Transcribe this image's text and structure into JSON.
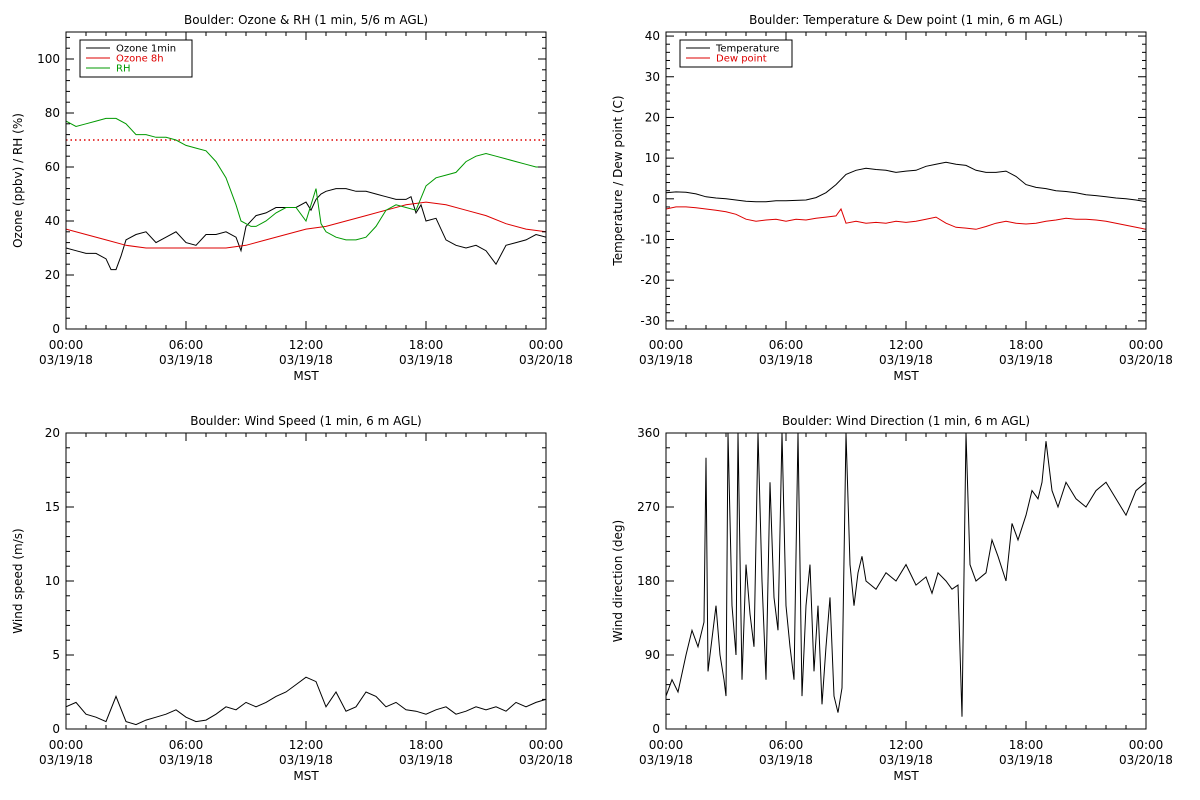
{
  "chart_data": [
    {
      "type": "line",
      "title": "Boulder: Ozone & RH (1 min, 5/6 m AGL)",
      "xlabel": "MST",
      "ylabel": "Ozone (ppbv) / RH (%)",
      "xlim_hours": [
        0,
        24
      ],
      "ylim": [
        0,
        110
      ],
      "yticks": [
        0,
        20,
        40,
        60,
        80,
        100
      ],
      "xtick_times": [
        "00:00",
        "06:00",
        "12:00",
        "18:00",
        "00:00"
      ],
      "xtick_dates": [
        "03/19/18",
        "03/19/18",
        "03/19/18",
        "03/19/18",
        "03/20/18"
      ],
      "legend_position": "top-left",
      "reference_line": {
        "y": 70,
        "style": "dotted",
        "color": "#dd0000"
      },
      "series": [
        {
          "name": "Ozone 1min",
          "color": "#000000",
          "x": [
            0,
            0.5,
            1,
            1.5,
            2,
            2.25,
            2.5,
            2.75,
            3,
            3.5,
            4,
            4.5,
            5,
            5.5,
            6,
            6.5,
            7,
            7.5,
            8,
            8.5,
            8.75,
            9,
            9.5,
            10,
            10.5,
            11,
            11.5,
            12,
            12.25,
            12.5,
            12.75,
            13,
            13.5,
            14,
            14.5,
            15,
            15.5,
            16,
            16.5,
            17,
            17.25,
            17.5,
            17.75,
            18,
            18.5,
            19,
            19.5,
            20,
            20.5,
            21,
            21.5,
            22,
            22.5,
            23,
            23.5,
            24
          ],
          "y": [
            30,
            29,
            28,
            28,
            26,
            22,
            22,
            27,
            33,
            35,
            36,
            32,
            34,
            36,
            32,
            31,
            35,
            35,
            36,
            34,
            29,
            38,
            42,
            43,
            45,
            45,
            45,
            47,
            44,
            48,
            50,
            51,
            52,
            52,
            51,
            51,
            50,
            49,
            48,
            48,
            49,
            43,
            46,
            40,
            41,
            33,
            31,
            30,
            31,
            29,
            24,
            31,
            32,
            33,
            35,
            34
          ]
        },
        {
          "name": "Ozone 8h",
          "color": "#dd0000",
          "x": [
            0,
            1,
            2,
            3,
            4,
            5,
            6,
            7,
            8,
            9,
            10,
            11,
            12,
            13,
            14,
            15,
            16,
            17,
            18,
            19,
            20,
            21,
            22,
            23,
            24
          ],
          "y": [
            37,
            35,
            33,
            31,
            30,
            30,
            30,
            30,
            30,
            31,
            33,
            35,
            37,
            38,
            40,
            42,
            44,
            46,
            47,
            46,
            44,
            42,
            39,
            37,
            36
          ]
        },
        {
          "name": "RH",
          "color": "#009900",
          "x": [
            0,
            0.5,
            1,
            1.5,
            2,
            2.5,
            3,
            3.5,
            4,
            4.5,
            5,
            5.5,
            6,
            6.5,
            7,
            7.5,
            8,
            8.25,
            8.5,
            8.75,
            9,
            9.25,
            9.5,
            10,
            10.5,
            11,
            11.5,
            12,
            12.25,
            12.5,
            12.75,
            13,
            13.5,
            14,
            14.5,
            15,
            15.5,
            16,
            16.5,
            17,
            17.5,
            18,
            18.5,
            19,
            19.5,
            20,
            20.5,
            21,
            21.5,
            22,
            22.5,
            23,
            23.5,
            24
          ],
          "y": [
            77,
            75,
            76,
            77,
            78,
            78,
            76,
            72,
            72,
            71,
            71,
            70,
            68,
            67,
            66,
            62,
            56,
            51,
            46,
            40,
            39,
            38,
            38,
            40,
            43,
            45,
            45,
            40,
            46,
            52,
            39,
            36,
            34,
            33,
            33,
            34,
            38,
            44,
            46,
            45,
            44,
            53,
            56,
            57,
            58,
            62,
            64,
            65,
            64,
            63,
            62,
            61,
            60,
            60
          ]
        }
      ]
    },
    {
      "type": "line",
      "title": "Boulder: Temperature & Dew point (1 min, 6 m AGL)",
      "xlabel": "MST",
      "ylabel": "Temperature / Dew point (C)",
      "xlim_hours": [
        0,
        24
      ],
      "ylim": [
        -32,
        41
      ],
      "yticks": [
        -30,
        -20,
        -10,
        0,
        10,
        20,
        30,
        40
      ],
      "xtick_times": [
        "00:00",
        "06:00",
        "12:00",
        "18:00",
        "00:00"
      ],
      "xtick_dates": [
        "03/19/18",
        "03/19/18",
        "03/19/18",
        "03/19/18",
        "03/20/18"
      ],
      "legend_position": "top-left",
      "series": [
        {
          "name": "Temperature",
          "color": "#000000",
          "x": [
            0,
            0.5,
            1,
            1.5,
            2,
            2.5,
            3,
            3.5,
            4,
            4.5,
            5,
            5.5,
            6,
            6.5,
            7,
            7.5,
            8,
            8.5,
            9,
            9.5,
            10,
            10.5,
            11,
            11.5,
            12,
            12.5,
            13,
            13.5,
            14,
            14.5,
            15,
            15.5,
            16,
            16.5,
            17,
            17.5,
            18,
            18.5,
            19,
            19.5,
            20,
            20.5,
            21,
            21.5,
            22,
            22.5,
            23,
            23.5,
            24
          ],
          "y": [
            1.5,
            1.7,
            1.6,
            1.2,
            0.5,
            0.2,
            0,
            -0.3,
            -0.6,
            -0.7,
            -0.7,
            -0.5,
            -0.5,
            -0.4,
            -0.3,
            0.3,
            1.5,
            3.5,
            6,
            7,
            7.5,
            7.2,
            7,
            6.5,
            6.8,
            7,
            8,
            8.5,
            9,
            8.5,
            8.2,
            7,
            6.5,
            6.5,
            6.8,
            5.5,
            3.5,
            2.8,
            2.5,
            2,
            1.8,
            1.5,
            1,
            0.8,
            0.5,
            0.2,
            0,
            -0.3,
            -0.7
          ]
        },
        {
          "name": "Dew point",
          "color": "#dd0000",
          "x": [
            0,
            0.5,
            1,
            1.5,
            2,
            2.5,
            3,
            3.5,
            4,
            4.5,
            5,
            5.5,
            6,
            6.5,
            7,
            7.5,
            8,
            8.5,
            8.75,
            9,
            9.5,
            10,
            10.5,
            11,
            11.5,
            12,
            12.5,
            13,
            13.5,
            14,
            14.5,
            15,
            15.5,
            16,
            16.5,
            17,
            17.5,
            18,
            18.5,
            19,
            19.5,
            20,
            20.5,
            21,
            21.5,
            22,
            22.5,
            23,
            23.5,
            24
          ],
          "y": [
            -2.5,
            -2,
            -2,
            -2.2,
            -2.5,
            -2.8,
            -3.2,
            -3.8,
            -5,
            -5.5,
            -5.2,
            -5,
            -5.5,
            -5,
            -5.2,
            -4.8,
            -4.5,
            -4.2,
            -2.5,
            -6,
            -5.5,
            -6,
            -5.8,
            -6,
            -5.5,
            -5.8,
            -5.5,
            -5,
            -4.5,
            -6,
            -7,
            -7.2,
            -7.5,
            -6.8,
            -6,
            -5.5,
            -6,
            -6.2,
            -6,
            -5.5,
            -5.2,
            -4.8,
            -5,
            -5,
            -5.2,
            -5.5,
            -6,
            -6.5,
            -7,
            -7.5
          ]
        }
      ]
    },
    {
      "type": "line",
      "title": "Boulder: Wind Speed (1 min, 6 m AGL)",
      "xlabel": "MST",
      "ylabel": "Wind speed (m/s)",
      "xlim_hours": [
        0,
        24
      ],
      "ylim": [
        0,
        20
      ],
      "yticks": [
        0,
        5,
        10,
        15,
        20
      ],
      "xtick_times": [
        "00:00",
        "06:00",
        "12:00",
        "18:00",
        "00:00"
      ],
      "xtick_dates": [
        "03/19/18",
        "03/19/18",
        "03/19/18",
        "03/19/18",
        "03/20/18"
      ],
      "series": [
        {
          "name": "",
          "color": "#000000",
          "x": [
            0,
            0.5,
            1,
            1.5,
            2,
            2.5,
            3,
            3.5,
            4,
            4.5,
            5,
            5.5,
            6,
            6.5,
            7,
            7.5,
            8,
            8.5,
            9,
            9.5,
            10,
            10.5,
            11,
            11.5,
            12,
            12.5,
            13,
            13.5,
            14,
            14.5,
            15,
            15.5,
            16,
            16.5,
            17,
            17.5,
            18,
            18.5,
            19,
            19.5,
            20,
            20.5,
            21,
            21.5,
            22,
            22.5,
            23,
            23.5,
            24
          ],
          "y": [
            1.5,
            1.8,
            1,
            0.8,
            0.5,
            2.2,
            0.5,
            0.3,
            0.6,
            0.8,
            1,
            1.3,
            0.8,
            0.5,
            0.6,
            1,
            1.5,
            1.3,
            1.8,
            1.5,
            1.8,
            2.2,
            2.5,
            3,
            3.5,
            3.2,
            1.5,
            2.5,
            1.2,
            1.5,
            2.5,
            2.2,
            1.5,
            1.8,
            1.3,
            1.2,
            1,
            1.3,
            1.5,
            1,
            1.2,
            1.5,
            1.3,
            1.5,
            1.2,
            1.8,
            1.5,
            1.8,
            2
          ]
        }
      ]
    },
    {
      "type": "line",
      "title": "Boulder: Wind Direction (1 min, 6 m AGL)",
      "xlabel": "MST",
      "ylabel": "Wind direction (deg)",
      "xlim_hours": [
        0,
        24
      ],
      "ylim": [
        0,
        360
      ],
      "yticks": [
        0,
        90,
        180,
        270,
        360
      ],
      "xtick_times": [
        "00:00",
        "06:00",
        "12:00",
        "18:00",
        "00:00"
      ],
      "xtick_dates": [
        "03/19/18",
        "03/19/18",
        "03/19/18",
        "03/19/18",
        "03/20/18"
      ],
      "series": [
        {
          "name": "",
          "color": "#000000",
          "x": [
            0,
            0.3,
            0.6,
            1,
            1.3,
            1.6,
            1.9,
            2.0,
            2.1,
            2.3,
            2.5,
            2.7,
            2.9,
            3.0,
            3.1,
            3.3,
            3.5,
            3.6,
            3.8,
            4.0,
            4.2,
            4.4,
            4.6,
            4.8,
            5.0,
            5.2,
            5.4,
            5.6,
            5.8,
            6.0,
            6.2,
            6.4,
            6.6,
            6.8,
            7.0,
            7.2,
            7.4,
            7.6,
            7.8,
            8.0,
            8.2,
            8.4,
            8.6,
            8.8,
            9.0,
            9.2,
            9.4,
            9.6,
            9.8,
            10.0,
            10.5,
            11,
            11.5,
            12,
            12.5,
            13,
            13.3,
            13.6,
            14,
            14.3,
            14.6,
            14.8,
            15.0,
            15.2,
            15.5,
            16,
            16.3,
            16.6,
            17,
            17.3,
            17.6,
            18,
            18.3,
            18.6,
            18.8,
            19,
            19.3,
            19.6,
            20,
            20.5,
            21,
            21.5,
            22,
            22.5,
            23,
            23.5,
            24
          ],
          "y": [
            40,
            60,
            45,
            90,
            120,
            100,
            130,
            330,
            70,
            110,
            150,
            90,
            60,
            40,
            360,
            150,
            90,
            360,
            60,
            200,
            140,
            100,
            360,
            180,
            60,
            300,
            160,
            120,
            360,
            150,
            100,
            60,
            360,
            40,
            150,
            200,
            70,
            150,
            30,
            100,
            160,
            40,
            20,
            50,
            360,
            200,
            150,
            190,
            210,
            180,
            170,
            190,
            180,
            200,
            175,
            185,
            165,
            190,
            180,
            170,
            175,
            15,
            360,
            200,
            180,
            190,
            230,
            210,
            180,
            250,
            230,
            260,
            290,
            280,
            300,
            350,
            290,
            270,
            300,
            280,
            270,
            290,
            300,
            280,
            260,
            290,
            300
          ]
        }
      ]
    }
  ]
}
